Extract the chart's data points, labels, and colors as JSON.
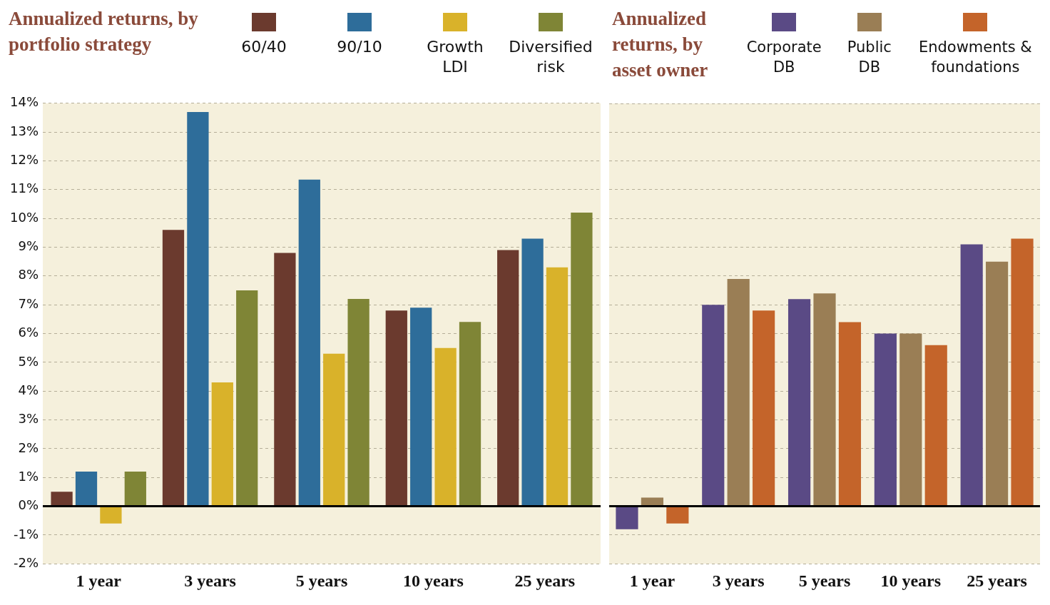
{
  "chart_data": [
    {
      "type": "bar",
      "legend_title": "Annualized returns, by portfolio strategy",
      "legend": "top",
      "grid": "y",
      "categories": [
        "1 year",
        "3 years",
        "5 years",
        "10 years",
        "25 years"
      ],
      "series": [
        {
          "name": "60/40",
          "color": "#6b3a2e",
          "values": [
            0.5,
            9.6,
            8.8,
            6.8,
            8.9
          ]
        },
        {
          "name": "90/10",
          "color": "#2e6d9a",
          "values": [
            1.2,
            13.7,
            11.35,
            6.9,
            9.3
          ]
        },
        {
          "name": "Growth LDI",
          "color": "#d9b22a",
          "values": [
            -0.6,
            4.3,
            5.3,
            5.5,
            8.3
          ]
        },
        {
          "name": "Diversified risk",
          "color": "#7f8536",
          "values": [
            1.2,
            7.5,
            7.2,
            6.4,
            10.2
          ]
        }
      ],
      "ylim": [
        -2,
        14
      ],
      "yticks": [
        {
          "value": -2,
          "label": "-2%"
        },
        {
          "value": -1,
          "label": "-1%"
        },
        {
          "value": 0,
          "label": "0%"
        },
        {
          "value": 1,
          "label": "1%"
        },
        {
          "value": 2,
          "label": "2%"
        },
        {
          "value": 3,
          "label": "3%"
        },
        {
          "value": 4,
          "label": "4%"
        },
        {
          "value": 5,
          "label": "5%"
        },
        {
          "value": 6,
          "label": "6%"
        },
        {
          "value": 7,
          "label": "7%"
        },
        {
          "value": 8,
          "label": "8%"
        },
        {
          "value": 9,
          "label": "9%"
        },
        {
          "value": 10,
          "label": "10%"
        },
        {
          "value": 11,
          "label": "11%"
        },
        {
          "value": 12,
          "label": "12%"
        },
        {
          "value": 13,
          "label": "13%"
        },
        {
          "value": 14,
          "label": "14%"
        }
      ],
      "ref_lines": [
        {
          "axis": "y",
          "value": 0,
          "color": "#000000"
        }
      ]
    },
    {
      "type": "bar",
      "legend_title": "Annualized returns, by asset owner",
      "legend": "top",
      "grid": "y",
      "tick_labels": "x",
      "categories": [
        "1 year",
        "3 years",
        "5 years",
        "10 years",
        "25 years"
      ],
      "series": [
        {
          "name": "Corporate DB",
          "color": "#5a4a85",
          "values": [
            -0.8,
            7.0,
            7.2,
            6.0,
            9.1
          ]
        },
        {
          "name": "Public DB",
          "color": "#9a7e55",
          "values": [
            0.3,
            7.9,
            7.4,
            6.0,
            8.5
          ]
        },
        {
          "name": "Endowments & foundations",
          "color": "#c4642a",
          "values": [
            -0.6,
            6.8,
            6.4,
            5.6,
            9.3
          ]
        }
      ],
      "ylim": [
        -2,
        14
      ],
      "yticks": [
        -2,
        -1,
        0,
        1,
        2,
        3,
        4,
        5,
        6,
        7,
        8,
        9,
        10,
        11,
        12,
        13,
        14
      ],
      "ref_lines": [
        {
          "axis": "y",
          "value": 0,
          "color": "#000000"
        }
      ]
    }
  ]
}
